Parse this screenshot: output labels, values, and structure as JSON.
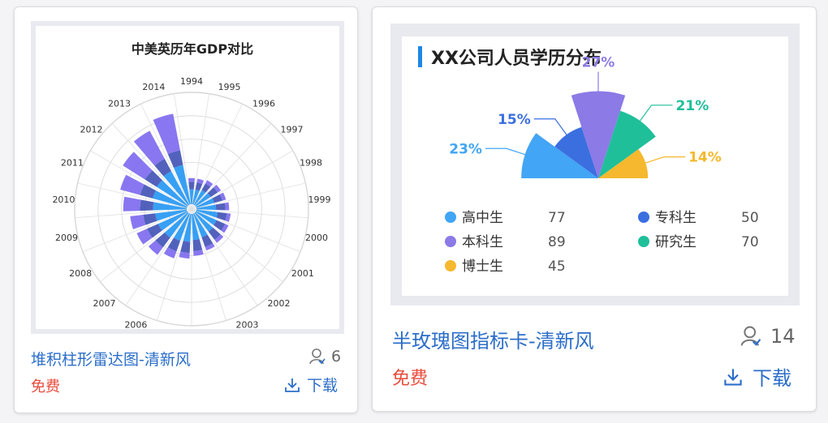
{
  "cards": [
    {
      "title": "堆积柱形雷达图-清新风",
      "price": "免费",
      "users": "6",
      "download_label": "下载",
      "preview": {
        "chart_data": {
          "type": "bar",
          "subtype": "polar-stacked",
          "title": "中美英历年GDP对比",
          "categories": [
            "1994",
            "1995",
            "1996",
            "1997",
            "1998",
            "1999",
            "2000",
            "2001",
            "2002",
            "2003",
            "2004",
            "2005",
            "2006",
            "2007",
            "2008",
            "2009",
            "2010",
            "2011",
            "2012",
            "2013",
            "2014"
          ],
          "series": [
            {
              "color": "#2196f3",
              "values": [
                16,
                16,
                18,
                19,
                20,
                21,
                23,
                24,
                25,
                27,
                28,
                30,
                31,
                33,
                34,
                34,
                36,
                38,
                39,
                41,
                43
              ]
            },
            {
              "color": "#3f51b5",
              "values": [
                8,
                8,
                8,
                9,
                9,
                10,
                10,
                10,
                11,
                11,
                12,
                12,
                12,
                13,
                13,
                13,
                14,
                14,
                15,
                15,
                16
              ]
            },
            {
              "color": "#7b68ee",
              "values": [
                4,
                4,
                4,
                4,
                4,
                4,
                4,
                4,
                4,
                4,
                5,
                6,
                8,
                10,
                12,
                14,
                18,
                22,
                28,
                34,
                40
              ]
            }
          ]
        }
      }
    },
    {
      "title": "半玫瑰图指标卡-清新风",
      "price": "免费",
      "users": "14",
      "download_label": "下载",
      "preview": {
        "chart_data": {
          "type": "pie",
          "subtype": "half-rose",
          "title": "XX公司人员学历分布",
          "slices": [
            {
              "label": "高中生",
              "value": 77,
              "percent": "23%",
              "color": "#42a5f5"
            },
            {
              "label": "专科生",
              "value": 50,
              "percent": "15%",
              "color": "#3b6fe0"
            },
            {
              "label": "本科生",
              "value": 89,
              "percent": "27%",
              "color": "#8c7ae6"
            },
            {
              "label": "研究生",
              "value": 70,
              "percent": "21%",
              "color": "#1fbf9a"
            },
            {
              "label": "博士生",
              "value": 45,
              "percent": "14%",
              "color": "#f5b82e"
            }
          ]
        }
      }
    }
  ]
}
